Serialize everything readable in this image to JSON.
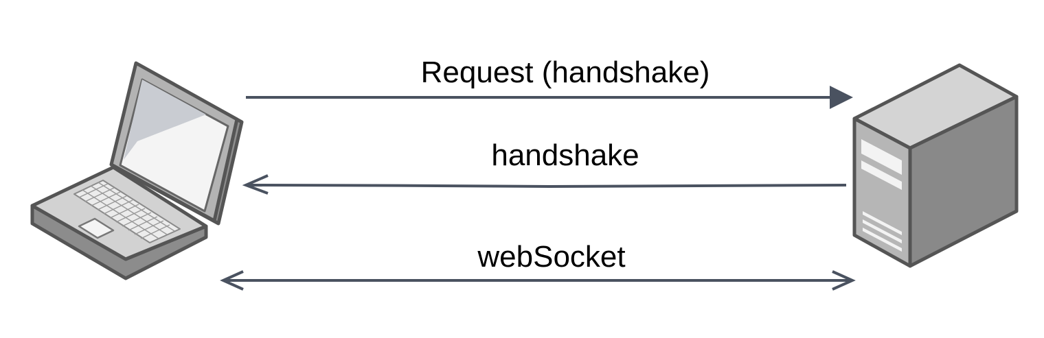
{
  "nodes": {
    "client": {
      "icon": "laptop-icon"
    },
    "server": {
      "icon": "server-tower-icon"
    }
  },
  "arrows": {
    "request": {
      "label": "Request (handshake)",
      "direction": "client-to-server"
    },
    "response": {
      "label": "handshake",
      "direction": "server-to-client"
    },
    "websocket": {
      "label": "webSocket",
      "direction": "bidirectional"
    }
  },
  "colors": {
    "arrow": "#4a5260",
    "device_light": "#d9d9d9",
    "device_mid": "#b5b5b5",
    "device_dark": "#8a8a8a",
    "outline": "#555555"
  }
}
